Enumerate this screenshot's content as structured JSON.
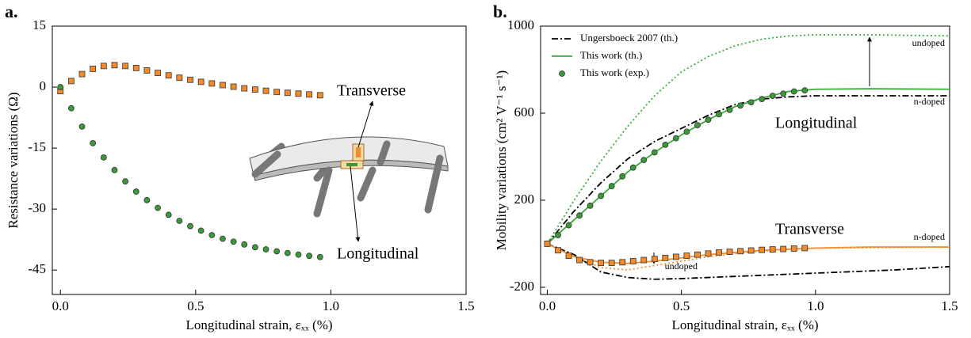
{
  "chart_data": [
    {
      "type": "line",
      "panel_label": "a.",
      "xlabel": "Longitudinal strain, εₓₓ (%)",
      "ylabel": "Resistance variations (Ω)",
      "xlim": [
        -0.03,
        1.5
      ],
      "ylim": [
        -51,
        15
      ],
      "xticks": [
        {
          "value": 0,
          "label": "0.0"
        },
        {
          "value": 0.5,
          "label": "0.5"
        },
        {
          "value": 1,
          "label": "1.0"
        },
        {
          "value": 1.5,
          "label": "1.5"
        }
      ],
      "yticks": [
        15,
        0,
        -15,
        -30,
        -45
      ],
      "series": [
        {
          "color": "#f28a2e",
          "marker": "square",
          "x": [
            0,
            0.04,
            0.08,
            0.12,
            0.16,
            0.2,
            0.24,
            0.28,
            0.32,
            0.36,
            0.4,
            0.44,
            0.48,
            0.52,
            0.56,
            0.6,
            0.64,
            0.68,
            0.72,
            0.76,
            0.8,
            0.84,
            0.88,
            0.92,
            0.96
          ],
          "values": [
            -1,
            1.5,
            3.2,
            4.5,
            5.2,
            5.4,
            5.2,
            4.7,
            4.1,
            3.5,
            2.9,
            2.3,
            1.8,
            1.3,
            0.9,
            0.5,
            0.1,
            -0.3,
            -0.6,
            -0.9,
            -1.2,
            -1.4,
            -1.6,
            -1.8,
            -2.0
          ]
        },
        {
          "color": "#3a9a3a",
          "marker": "circle",
          "x": [
            0,
            0.04,
            0.08,
            0.12,
            0.16,
            0.2,
            0.24,
            0.28,
            0.32,
            0.36,
            0.4,
            0.44,
            0.48,
            0.52,
            0.56,
            0.6,
            0.64,
            0.68,
            0.72,
            0.76,
            0.8,
            0.84,
            0.88,
            0.92,
            0.96
          ],
          "values": [
            0,
            -5.2,
            -9.7,
            -13.8,
            -17.3,
            -20.4,
            -23.2,
            -25.7,
            -27.8,
            -29.7,
            -31.4,
            -32.9,
            -34.2,
            -35.3,
            -36.4,
            -37.3,
            -38.0,
            -38.7,
            -39.4,
            -39.9,
            -40.4,
            -40.8,
            -41.2,
            -41.5,
            -41.8
          ]
        }
      ],
      "annotations": [
        {
          "text": "Transverse",
          "color": "#f28a2e"
        },
        {
          "text": "Longitudinal",
          "color": "#3a9a3a"
        }
      ]
    },
    {
      "type": "line",
      "panel_label": "b.",
      "xlabel": "Longitudinal strain, εₓₓ (%)",
      "ylabel": "Mobility variations (cm² V⁻¹ s⁻¹)",
      "xlim": [
        -0.025,
        1.5
      ],
      "ylim": [
        -233,
        1000
      ],
      "xticks": [
        {
          "value": 0,
          "label": "0.0"
        },
        {
          "value": 0.5,
          "label": "0.5"
        },
        {
          "value": 1,
          "label": "1.0"
        },
        {
          "value": 1.5,
          "label": "1.5"
        }
      ],
      "yticks": [
        1000,
        600,
        200,
        -200
      ],
      "series": [
        {
          "name": "Ungersboeck 2007 (th.)",
          "color": "#000000",
          "dash": "dashdot",
          "x": [
            0,
            0.1,
            0.2,
            0.3,
            0.4,
            0.5,
            0.6,
            0.7,
            0.8,
            0.9,
            1.0,
            1.2,
            1.5
          ],
          "values": [
            0,
            150,
            280,
            390,
            470,
            530,
            590,
            640,
            665,
            675,
            680,
            680,
            680
          ]
        },
        {
          "name": "Ungersboeck 2007 (th.)",
          "color": "#000000",
          "dash": "dashdot",
          "x": [
            0,
            0.1,
            0.2,
            0.3,
            0.4,
            0.5,
            0.7,
            0.9,
            1.1,
            1.3,
            1.5
          ],
          "values": [
            0,
            -50,
            -130,
            -155,
            -163,
            -160,
            -150,
            -140,
            -130,
            -120,
            -105
          ]
        },
        {
          "name": "This work (th.)",
          "color": "#3bab3b",
          "dash": "solid",
          "x": [
            0,
            0.1,
            0.2,
            0.3,
            0.4,
            0.5,
            0.6,
            0.7,
            0.8,
            0.9,
            1.0,
            1.2,
            1.5
          ],
          "values": [
            0,
            110,
            220,
            330,
            420,
            500,
            570,
            630,
            670,
            700,
            710,
            712,
            710
          ]
        },
        {
          "name": "This work (th.)",
          "color": "#f39233",
          "dash": "solid",
          "x": [
            0,
            0.1,
            0.2,
            0.3,
            0.4,
            0.5,
            0.6,
            0.7,
            0.8,
            0.9,
            1.0,
            1.2,
            1.5
          ],
          "values": [
            0,
            -60,
            -85,
            -90,
            -80,
            -65,
            -50,
            -40,
            -30,
            -25,
            -20,
            -15,
            -15
          ]
        },
        {
          "name": "This work (th.)",
          "color": "#3bab3b",
          "dash": "dotted",
          "x": [
            0,
            0.1,
            0.2,
            0.3,
            0.4,
            0.5,
            0.6,
            0.7,
            0.8,
            0.9,
            1.0,
            1.2,
            1.5
          ],
          "values": [
            0,
            200,
            380,
            540,
            680,
            790,
            860,
            910,
            940,
            955,
            960,
            960,
            955
          ]
        },
        {
          "name": "This work (th.)",
          "color": "#f39233",
          "dash": "dotted",
          "x": [
            0,
            0.1,
            0.2,
            0.3,
            0.4,
            0.5,
            0.6,
            0.7,
            0.8,
            0.9,
            1.0,
            1.2,
            1.5
          ],
          "values": [
            0,
            -60,
            -110,
            -120,
            -100,
            -80,
            -60,
            -45,
            -35,
            -25,
            -20,
            -18,
            -15
          ]
        },
        {
          "name": "This work (exp.)",
          "color": "#3a9a3a",
          "marker": "circle",
          "x": [
            0,
            0.04,
            0.08,
            0.12,
            0.16,
            0.2,
            0.24,
            0.28,
            0.32,
            0.36,
            0.4,
            0.44,
            0.48,
            0.52,
            0.56,
            0.6,
            0.64,
            0.68,
            0.72,
            0.76,
            0.8,
            0.84,
            0.88,
            0.92,
            0.96
          ],
          "values": [
            0,
            40,
            85,
            130,
            175,
            220,
            265,
            310,
            350,
            385,
            420,
            455,
            485,
            515,
            545,
            570,
            595,
            615,
            635,
            650,
            665,
            680,
            690,
            700,
            705
          ]
        },
        {
          "name": "This work (exp.)",
          "color": "#f28a2e",
          "marker": "square",
          "x": [
            0,
            0.04,
            0.08,
            0.12,
            0.16,
            0.2,
            0.24,
            0.28,
            0.32,
            0.36,
            0.4,
            0.44,
            0.48,
            0.52,
            0.56,
            0.6,
            0.64,
            0.68,
            0.72,
            0.76,
            0.8,
            0.84,
            0.88,
            0.92,
            0.96
          ],
          "values": [
            0,
            -30,
            -55,
            -75,
            -85,
            -88,
            -88,
            -85,
            -80,
            -75,
            -70,
            -65,
            -60,
            -55,
            -50,
            -45,
            -40,
            -37,
            -34,
            -31,
            -28,
            -26,
            -24,
            -22,
            -20
          ]
        }
      ],
      "annotations": [
        {
          "text": "Longitudinal",
          "color": "#3a9a3a"
        },
        {
          "text": "Transverse",
          "color": "#f28a2e"
        },
        {
          "text": "undoped",
          "color": "#3a9a3a"
        },
        {
          "text": "n-doped",
          "color": "#3a9a3a"
        },
        {
          "text": "n-doped",
          "color": "#f28a2e"
        },
        {
          "text": "undoped",
          "color": "#f28a2e"
        }
      ]
    }
  ]
}
